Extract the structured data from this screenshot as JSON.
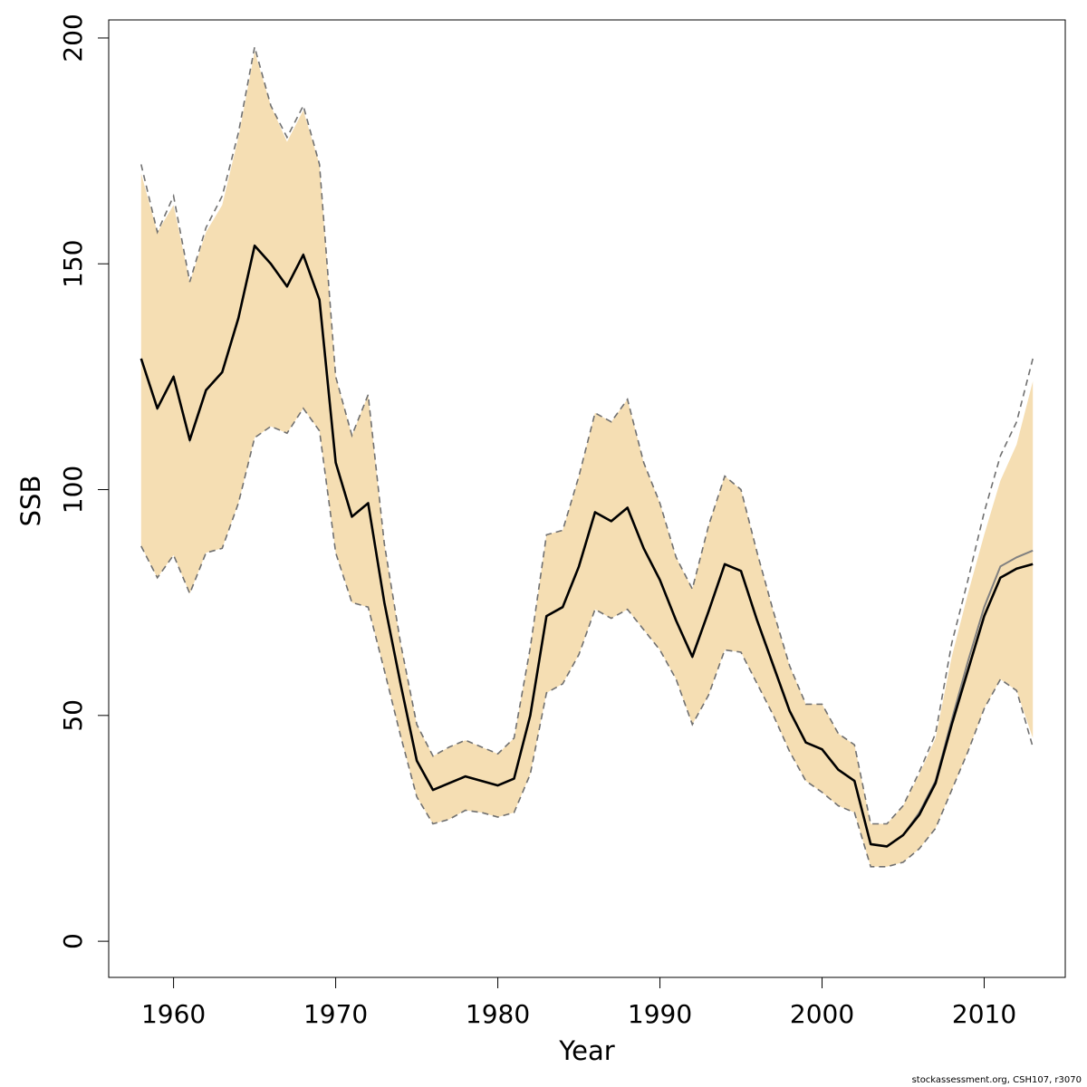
{
  "chart_data": {
    "type": "line",
    "xlabel": "Year",
    "ylabel": "SSB",
    "xlim": [
      1956,
      2015
    ],
    "ylim": [
      -8,
      204
    ],
    "x_ticks": [
      1960,
      1970,
      1980,
      1990,
      2000,
      2010
    ],
    "y_ticks": [
      0,
      50,
      100,
      150,
      200
    ],
    "band_color": "#F5DEB3",
    "bound_line_color": "#707070",
    "main_line_color": "#000000",
    "alt_line_color": "#808080",
    "x": [
      1958,
      1959,
      1960,
      1961,
      1962,
      1963,
      1964,
      1965,
      1966,
      1967,
      1968,
      1969,
      1970,
      1971,
      1972,
      1973,
      1974,
      1975,
      1976,
      1977,
      1978,
      1979,
      1980,
      1981,
      1982,
      1983,
      1984,
      1985,
      1986,
      1987,
      1988,
      1989,
      1990,
      1991,
      1992,
      1993,
      1994,
      1995,
      1996,
      1997,
      1998,
      1999,
      2000,
      2001,
      2002,
      2003,
      2004,
      2005,
      2006,
      2007,
      2008,
      2009,
      2010,
      2011,
      2012,
      2013
    ],
    "series": [
      {
        "role": "estimate",
        "values": [
          129,
          118,
          125,
          111,
          122,
          126,
          138,
          154,
          150,
          145,
          152,
          142,
          106,
          94,
          97,
          75,
          57,
          40,
          33.5,
          35,
          36.5,
          35.5,
          34.5,
          36,
          50,
          72,
          74,
          83,
          95,
          93,
          96,
          87,
          80,
          71,
          63,
          73,
          83.5,
          82,
          71,
          61,
          51,
          44,
          42.5,
          38,
          35.5,
          21.5,
          21,
          23.5,
          28,
          35,
          48,
          60,
          72,
          80.5,
          82.5,
          83.5
        ]
      },
      {
        "role": "estimate-alternative",
        "values": [
          129,
          118,
          125,
          111,
          122,
          126,
          138,
          154,
          150,
          145,
          152,
          142,
          106,
          94,
          97,
          75,
          57,
          40,
          33.5,
          35,
          36.5,
          35.5,
          34.5,
          36,
          50,
          72,
          74,
          83,
          95,
          93,
          96,
          87,
          80,
          71,
          63,
          73,
          83.5,
          82,
          71,
          61,
          51,
          44,
          42.5,
          38,
          35.5,
          21.5,
          21,
          23.5,
          28.5,
          35.5,
          49,
          62,
          74,
          83,
          85,
          86.5
        ]
      },
      {
        "role": "upper-bound",
        "values": [
          172,
          157,
          165,
          146,
          158,
          165,
          179,
          198,
          185,
          178,
          185,
          172,
          125,
          112,
          121,
          88,
          66,
          48,
          41,
          43,
          44.5,
          43,
          41.5,
          45,
          65,
          90,
          91,
          103,
          117,
          115,
          120,
          106,
          97,
          85,
          78,
          92,
          103,
          100,
          86,
          73,
          61,
          52.5,
          52.5,
          46,
          43.5,
          26,
          26,
          30,
          37.5,
          46,
          66,
          80,
          95,
          107.5,
          115,
          129
        ]
      },
      {
        "role": "lower-bound",
        "values": [
          87.5,
          80.5,
          85.5,
          77,
          86,
          87,
          97,
          111.5,
          114,
          112.5,
          118,
          113,
          86,
          75,
          74,
          60,
          45.5,
          32,
          26,
          27,
          29,
          28.5,
          27.5,
          28.5,
          37,
          55,
          57,
          63.5,
          73.5,
          71.5,
          73.5,
          69,
          64.5,
          58,
          48,
          54.5,
          64.5,
          64,
          57,
          50,
          42,
          35.5,
          33,
          30,
          28.5,
          16.5,
          16.5,
          17.5,
          20.5,
          25,
          33.5,
          42,
          51.5,
          58,
          55.5,
          43
        ]
      },
      {
        "role": "band-upper",
        "values": [
          170,
          157,
          163,
          146,
          157,
          163,
          178,
          197,
          185,
          177,
          184,
          172,
          125,
          112,
          121,
          88,
          66,
          48,
          41,
          43,
          44.5,
          43,
          41.5,
          45,
          65,
          90,
          91,
          103,
          117,
          115,
          120,
          106,
          97,
          85,
          78,
          92,
          103,
          100,
          86,
          73,
          61,
          52.5,
          52.5,
          46,
          43.5,
          26,
          26,
          30,
          37,
          45,
          63,
          77,
          90,
          102,
          110,
          124
        ]
      },
      {
        "role": "band-lower",
        "values": [
          87.5,
          80.5,
          85.5,
          77,
          86,
          87,
          97,
          111.5,
          114,
          112.5,
          118,
          113,
          86,
          75,
          74,
          60,
          45.5,
          32,
          26,
          27,
          29,
          28.5,
          27.5,
          28.5,
          37,
          55,
          57,
          63.5,
          73.5,
          71.5,
          73.5,
          69,
          64.5,
          58,
          48,
          54.5,
          64.5,
          64,
          57,
          50,
          42,
          35.5,
          33,
          30,
          28.5,
          16.5,
          16.5,
          17.5,
          20.5,
          25,
          33.5,
          42,
          51.5,
          58,
          55.5,
          45
        ]
      }
    ]
  },
  "footer": "stockassessment.org, CSH107, r3070"
}
